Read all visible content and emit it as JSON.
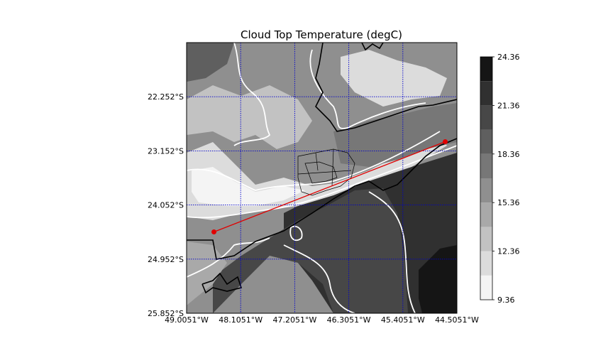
{
  "chart_data": {
    "type": "contour-map",
    "title": "Cloud Top Temperature (degC)",
    "x_ticks": [
      "49.0051°W",
      "48.1051°W",
      "47.2051°W",
      "46.3051°W",
      "45.4051°W",
      "44.5051°W"
    ],
    "y_ticks": [
      "22.252°S",
      "23.152°S",
      "24.052°S",
      "24.952°S",
      "25.852°S"
    ],
    "colorbar": {
      "ticks": [
        "9.36",
        "12.36",
        "15.36",
        "18.36",
        "21.36",
        "24.36"
      ],
      "levels": [
        9.36,
        10.86,
        12.36,
        13.86,
        15.36,
        16.86,
        18.36,
        19.86,
        21.36,
        22.86,
        24.36
      ],
      "colors": [
        "#f4f4f4",
        "#dcdcdc",
        "#c2c2c2",
        "#a9a9a9",
        "#8f8f8f",
        "#777777",
        "#5f5f5f",
        "#474747",
        "#303030",
        "#151515"
      ]
    },
    "gridlines": "on",
    "gridline_color": "#0000cc",
    "cross_section_line": {
      "color": "#e00000",
      "start": {
        "lon": -48.55,
        "lat": -24.5
      },
      "end": {
        "lon": -44.7,
        "lat": -23.0
      }
    }
  }
}
